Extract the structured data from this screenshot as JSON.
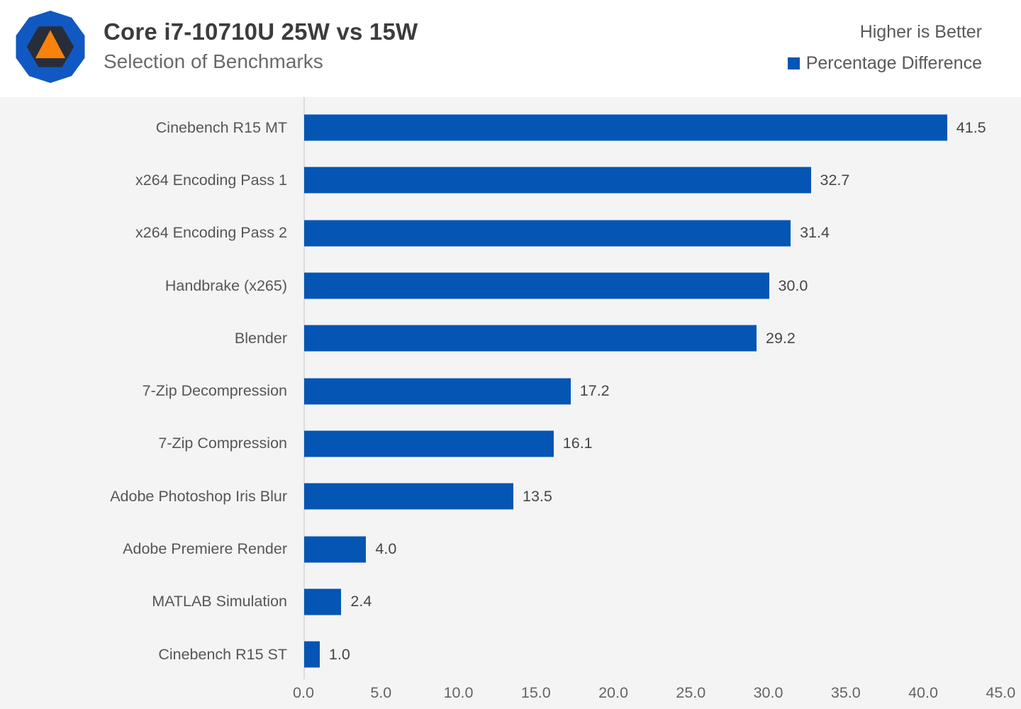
{
  "header": {
    "title": "Core i7-10710U 25W vs 15W",
    "subtitle": "Selection of Benchmarks",
    "higher_is_better": "Higher is Better",
    "legend_label": "Percentage Difference"
  },
  "colors": {
    "bar_blue": "#0455b4",
    "chart_background": "#f4f4f4",
    "header_background": "#ffffff",
    "axis_line": "#dcdcdc",
    "logo_blue": "#1159c2",
    "logo_dark": "#272e3a",
    "logo_orange": "#f8820c"
  },
  "chart_data": {
    "type": "bar",
    "orientation": "horizontal",
    "title": "Core i7-10710U 25W vs 15W",
    "subtitle": "Selection of Benchmarks",
    "series_name": "Percentage Difference",
    "note": "Higher is Better",
    "categories": [
      "Cinebench R15 MT",
      "x264 Encoding Pass 1",
      "x264 Encoding Pass 2",
      "Handbrake (x265)",
      "Blender",
      "7-Zip Decompression",
      "7-Zip Compression",
      "Adobe Photoshop Iris Blur",
      "Adobe Premiere Render",
      "MATLAB Simulation",
      "Cinebench R15 ST"
    ],
    "values": [
      41.5,
      32.7,
      31.4,
      30.0,
      29.2,
      17.2,
      16.1,
      13.5,
      4.0,
      2.4,
      1.0
    ],
    "value_labels": [
      "41.5",
      "32.7",
      "31.4",
      "30.0",
      "29.2",
      "17.2",
      "16.1",
      "13.5",
      "4.0",
      "2.4",
      "1.0"
    ],
    "x_ticks": [
      "0.0",
      "5.0",
      "10.0",
      "15.0",
      "20.0",
      "25.0",
      "30.0",
      "35.0",
      "40.0",
      "45.0"
    ],
    "xlim": [
      0,
      45
    ],
    "grid": false,
    "legend_position": "top-right"
  }
}
